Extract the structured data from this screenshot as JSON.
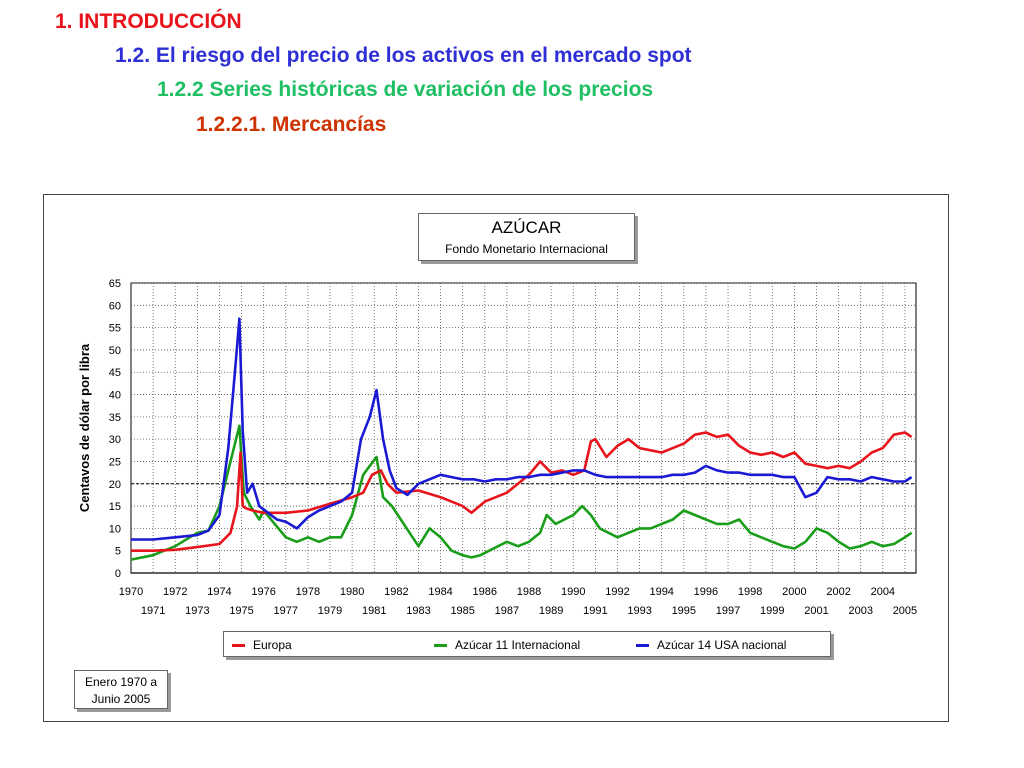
{
  "headings": {
    "h1": {
      "text": "1. INTRODUCCIÓN",
      "color": "#e8141b"
    },
    "h2": {
      "text": "1.2. El riesgo del precio de los activos en el mercado spot",
      "color": "#2f2fd6"
    },
    "h3": {
      "text": "1.2.2 Series históricas de variación de los precios",
      "color": "#1fbf63"
    },
    "h4": {
      "text": "1.2.2.1. Mercancías",
      "color": "#cc3300"
    }
  },
  "chart_box": {
    "title": "AZÚCAR",
    "subtitle": "Fondo Monetario Internacional"
  },
  "date_box": {
    "line1": "Enero 1970 a",
    "line2": "Junio 2005"
  },
  "chart_data": {
    "type": "line",
    "title": "AZÚCAR",
    "subtitle": "Fondo Monetario Internacional",
    "ylabel": "Centavos de dólar por libra",
    "xlabel": "",
    "ylim": [
      0,
      65
    ],
    "xlim": [
      1970,
      2005.5
    ],
    "yticks": [
      "0",
      "5",
      "10",
      "15",
      "20",
      "25",
      "30",
      "35",
      "40",
      "45",
      "50",
      "55",
      "60",
      "65"
    ],
    "xticks_top": [
      "1970",
      "1972",
      "1974",
      "1976",
      "1978",
      "1980",
      "1982",
      "1984",
      "1986",
      "1988",
      "1990",
      "1992",
      "1994",
      "1996",
      "1998",
      "2000",
      "2002",
      "2004"
    ],
    "xticks_bottom": [
      "1971",
      "1973",
      "1975",
      "1977",
      "1979",
      "1981",
      "1983",
      "1985",
      "1987",
      "1989",
      "1991",
      "1993",
      "1995",
      "1997",
      "1999",
      "2001",
      "2003",
      "2005"
    ],
    "grid": true,
    "legend_position": "bottom",
    "series": [
      {
        "name": "Europa",
        "color": "#e8141b",
        "x": [
          1970,
          1971,
          1972,
          1973,
          1974,
          1974.5,
          1974.8,
          1974.95,
          1975.05,
          1975.2,
          1975.5,
          1976,
          1977,
          1978,
          1979,
          1980,
          1980.5,
          1980.9,
          1981.3,
          1981.6,
          1982,
          1983,
          1984,
          1985,
          1985.4,
          1986,
          1987,
          1988,
          1988.5,
          1989,
          1989.5,
          1990,
          1990.5,
          1990.8,
          1991,
          1991.5,
          1992,
          1992.5,
          1993,
          1993.5,
          1994,
          1994.5,
          1995,
          1995.5,
          1996,
          1996.5,
          1997,
          1997.5,
          1998,
          1998.5,
          1999,
          1999.5,
          2000,
          2000.5,
          2001,
          2001.5,
          2002,
          2002.5,
          2003,
          2003.5,
          2004,
          2004.5,
          2005,
          2005.3
        ],
        "y": [
          5,
          5,
          5.2,
          5.8,
          6.5,
          9,
          15,
          27,
          15,
          14.5,
          14,
          13.5,
          13.5,
          14,
          15.5,
          17,
          18,
          22,
          23,
          20,
          18,
          18.5,
          17,
          15,
          13.5,
          16,
          18,
          22,
          25,
          22.5,
          23,
          22,
          23,
          29.5,
          30,
          26,
          28.5,
          30,
          28,
          27.5,
          27,
          28,
          29,
          31,
          31.5,
          30.5,
          31,
          28.5,
          27,
          26.5,
          27,
          26,
          27,
          24.5,
          24,
          23.5,
          24,
          23.5,
          25,
          27,
          28,
          31,
          31.5,
          30.5
        ]
      },
      {
        "name": "Azúcar 11 Internacional",
        "color": "#1a9e1a",
        "x": [
          1970,
          1971,
          1972,
          1973,
          1973.5,
          1974,
          1974.5,
          1974.9,
          1975.1,
          1975.4,
          1975.8,
          1976,
          1976.5,
          1977,
          1977.5,
          1978,
          1978.5,
          1979,
          1979.5,
          1980,
          1980.5,
          1980.8,
          1981.1,
          1981.4,
          1981.8,
          1982.2,
          1982.6,
          1983,
          1983.5,
          1984,
          1984.5,
          1985,
          1985.4,
          1985.8,
          1986.2,
          1986.6,
          1987,
          1987.5,
          1988,
          1988.5,
          1988.8,
          1989.2,
          1989.6,
          1990,
          1990.4,
          1990.8,
          1991.2,
          1991.6,
          1992,
          1992.5,
          1993,
          1993.5,
          1994,
          1994.5,
          1995,
          1995.5,
          1996,
          1996.5,
          1997,
          1997.5,
          1998,
          1998.5,
          1999,
          1999.5,
          2000,
          2000.5,
          2001,
          2001.5,
          2002,
          2002.5,
          2003,
          2003.5,
          2004,
          2004.5,
          2005,
          2005.3
        ],
        "y": [
          3,
          4,
          6,
          9,
          9.5,
          15,
          25,
          33,
          18,
          15,
          12,
          14,
          11,
          8,
          7,
          8,
          7,
          8,
          8,
          13,
          22,
          24,
          26,
          17,
          15,
          12,
          9,
          6,
          10,
          8,
          5,
          4,
          3.5,
          4,
          5,
          6,
          7,
          6,
          7,
          9,
          13,
          11,
          12,
          13,
          15,
          13,
          10,
          9,
          8,
          9,
          10,
          10,
          11,
          12,
          14,
          13,
          12,
          11,
          11,
          12,
          9,
          8,
          7,
          6,
          5.5,
          7,
          10,
          9,
          7,
          5.5,
          6,
          7,
          6,
          6.5,
          8,
          9
        ]
      },
      {
        "name": "Azúcar 14 USA nacional",
        "color": "#1a1ad4",
        "x": [
          1970,
          1971,
          1972,
          1973,
          1973.5,
          1974,
          1974.4,
          1974.7,
          1974.9,
          1975.05,
          1975.25,
          1975.5,
          1975.8,
          1976.2,
          1976.6,
          1977,
          1977.5,
          1978,
          1978.5,
          1979,
          1979.5,
          1980,
          1980.4,
          1980.8,
          1981.1,
          1981.4,
          1981.7,
          1982,
          1982.5,
          1983,
          1983.5,
          1984,
          1984.5,
          1985,
          1985.5,
          1986,
          1986.5,
          1987,
          1987.5,
          1988,
          1988.5,
          1989,
          1989.5,
          1990,
          1990.5,
          1991,
          1991.5,
          1992,
          1992.5,
          1993,
          1993.5,
          1994,
          1994.5,
          1995,
          1995.5,
          1996,
          1996.5,
          1997,
          1997.5,
          1998,
          1998.5,
          1999,
          1999.5,
          2000,
          2000.5,
          2001,
          2001.5,
          2002,
          2002.5,
          2003,
          2003.5,
          2004,
          2004.5,
          2005,
          2005.3
        ],
        "y": [
          7.5,
          7.5,
          8,
          8.5,
          9.5,
          13,
          28,
          45,
          57,
          32,
          18,
          20,
          15,
          13.5,
          12,
          11.5,
          10,
          12.5,
          14,
          15,
          16,
          18,
          30,
          35,
          41,
          30,
          23,
          19,
          17.5,
          20,
          21,
          22,
          21.5,
          21,
          21,
          20.5,
          21,
          21,
          21.5,
          21.5,
          22,
          22,
          22.5,
          23,
          23,
          22,
          21.5,
          21.5,
          21.5,
          21.5,
          21.5,
          21.5,
          22,
          22,
          22.5,
          24,
          23,
          22.5,
          22.5,
          22,
          22,
          22,
          21.5,
          21.5,
          17,
          18,
          21.5,
          21,
          21,
          20.5,
          21.5,
          21,
          20.5,
          20.5,
          21.5
        ]
      }
    ]
  }
}
